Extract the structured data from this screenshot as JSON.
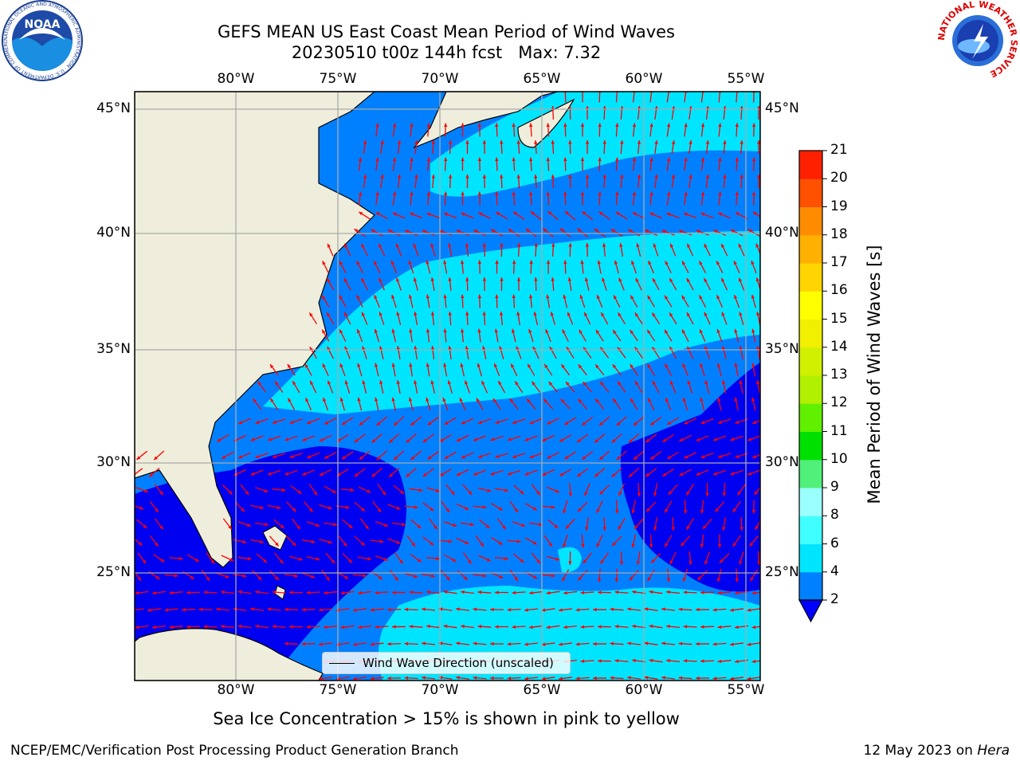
{
  "header": {
    "title_line1": "GEFS MEAN US East Coast Mean Period of Wind Waves",
    "title_line2_run": "20230510 t00z 144h fcst",
    "title_line2_max": "Max: 7.32"
  },
  "logos": {
    "noaa_text": "NOAA",
    "noaa_ring_text": "NATIONAL OCEANIC AND ATMOSPHERIC ADMINISTRATION · U.S. DEPARTMENT OF COMMERCE",
    "nws_ring_text": "NATIONAL WEATHER SERVICE"
  },
  "map": {
    "lon_labels": [
      "80°W",
      "75°W",
      "70°W",
      "65°W",
      "60°W",
      "55°W"
    ],
    "lat_labels": [
      "45°N",
      "40°N",
      "35°N",
      "30°N",
      "25°N"
    ],
    "lon_range": [
      -85,
      -54.3
    ],
    "lat_range": [
      20.5,
      46
    ],
    "gridlines": true,
    "colors": {
      "land": "#efeedc",
      "grid": "#aaaaaa",
      "arrows": "#ff0000"
    },
    "legend_label": "Wind Wave Direction (unscaled)",
    "legend_placement": "bottom-center"
  },
  "colorbar": {
    "label": "Mean Period of Wind Waves [s]",
    "ticks": [
      "2",
      "4",
      "6",
      "8",
      "9",
      "10",
      "11",
      "12",
      "13",
      "14",
      "15",
      "16",
      "17",
      "18",
      "19",
      "20",
      "21"
    ],
    "colors": [
      "#0080ff",
      "#00e5ff",
      "#40ffff",
      "#9cffff",
      "#50f07a",
      "#00e000",
      "#60f000",
      "#b0f000",
      "#d0f000",
      "#f0f000",
      "#ffff00",
      "#ffd400",
      "#ffb000",
      "#ff8c00",
      "#ff5000",
      "#ff2000"
    ],
    "extend_min_color": "#0000ff"
  },
  "footer": {
    "note": "Sea Ice Concentration > 15% is shown in pink to yellow",
    "credit": "NCEP/EMC/Verification Post Processing Product Generation Branch",
    "date": "12 May 2023 on",
    "host": "Hera"
  }
}
